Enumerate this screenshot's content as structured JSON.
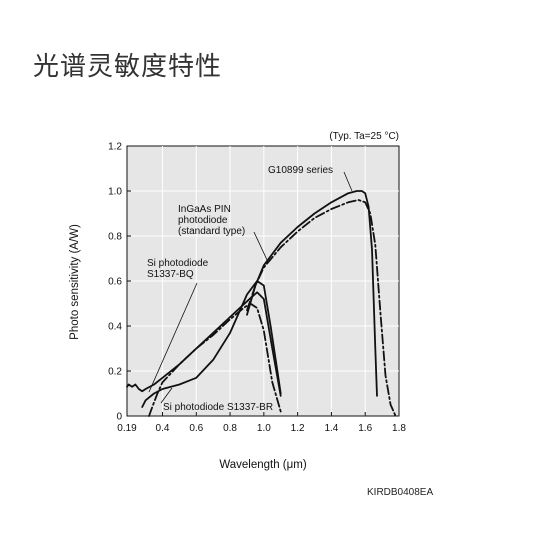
{
  "page": {
    "title": "光谱灵敏度特性",
    "figure_code": "KIRDB0408EA"
  },
  "chart_data": {
    "type": "line",
    "title": "",
    "condition_note": "(Typ. Ta=25 °C)",
    "xlabel": "Wavelength (μm)",
    "ylabel": "Photo sensitivity (A/W)",
    "xlim": [
      0.19,
      1.8
    ],
    "ylim": [
      0,
      1.2
    ],
    "x_ticks": [
      0.19,
      0.4,
      0.6,
      0.8,
      1.0,
      1.2,
      1.4,
      1.6,
      1.8
    ],
    "x_tick_labels": [
      "0.19",
      "0.4",
      "0.6",
      "0.8",
      "1.0",
      "1.2",
      "1.4",
      "1.6",
      "1.8"
    ],
    "y_ticks": [
      0,
      0.2,
      0.4,
      0.6,
      0.8,
      1.0,
      1.2
    ],
    "y_tick_labels": [
      "0",
      "0.2",
      "0.4",
      "0.6",
      "0.8",
      "1.0",
      "1.2"
    ],
    "grid": true,
    "background_color": "#e6e6e6",
    "series": [
      {
        "name": "G10899 series",
        "style": "solid",
        "x": [
          0.9,
          0.95,
          1.0,
          1.1,
          1.2,
          1.3,
          1.4,
          1.5,
          1.55,
          1.58,
          1.6,
          1.62,
          1.64,
          1.66,
          1.67
        ],
        "y": [
          0.45,
          0.58,
          0.67,
          0.77,
          0.84,
          0.9,
          0.95,
          0.99,
          1.0,
          1.0,
          0.99,
          0.93,
          0.74,
          0.3,
          0.09
        ]
      },
      {
        "name": "InGaAs PIN photodiode (standard type)",
        "style": "dashdot",
        "x": [
          0.9,
          0.95,
          1.0,
          1.1,
          1.2,
          1.3,
          1.4,
          1.5,
          1.56,
          1.6,
          1.63,
          1.66,
          1.69,
          1.72,
          1.75,
          1.78
        ],
        "y": [
          0.47,
          0.58,
          0.66,
          0.75,
          0.82,
          0.88,
          0.92,
          0.95,
          0.96,
          0.95,
          0.9,
          0.76,
          0.46,
          0.18,
          0.05,
          0.0
        ]
      },
      {
        "name": "Si photodiode S1337-BQ",
        "style": "solid",
        "x": [
          0.19,
          0.2,
          0.22,
          0.24,
          0.26,
          0.28,
          0.3,
          0.35,
          0.4,
          0.5,
          0.6,
          0.7,
          0.8,
          0.9,
          0.96,
          1.0,
          1.05,
          1.1
        ],
        "y": [
          0.13,
          0.14,
          0.13,
          0.14,
          0.12,
          0.11,
          0.12,
          0.14,
          0.17,
          0.23,
          0.3,
          0.37,
          0.44,
          0.51,
          0.55,
          0.52,
          0.3,
          0.09
        ]
      },
      {
        "name": "Si photodiode S1337-BR",
        "style": "dashdot",
        "x": [
          0.32,
          0.34,
          0.37,
          0.4,
          0.5,
          0.6,
          0.7,
          0.8,
          0.88,
          0.92,
          0.96,
          1.0,
          1.05,
          1.1
        ],
        "y": [
          0.0,
          0.04,
          0.1,
          0.15,
          0.23,
          0.3,
          0.36,
          0.43,
          0.48,
          0.5,
          0.48,
          0.38,
          0.15,
          0.02
        ]
      },
      {
        "name": "",
        "style": "solid",
        "x": [
          0.28,
          0.3,
          0.35,
          0.4,
          0.5,
          0.6,
          0.7,
          0.8,
          0.9,
          0.96,
          1.0,
          1.04,
          1.08,
          1.1
        ],
        "y": [
          0.04,
          0.07,
          0.1,
          0.12,
          0.14,
          0.17,
          0.25,
          0.37,
          0.54,
          0.6,
          0.58,
          0.4,
          0.2,
          0.1
        ]
      }
    ],
    "annotations": [
      {
        "text": "G10899 series",
        "series": 0
      },
      {
        "lines": [
          "InGaAs PIN",
          "photodiode",
          "(standard type)"
        ],
        "series": 1
      },
      {
        "lines": [
          "Si photodiode",
          "S1337-BQ"
        ],
        "series": 2
      },
      {
        "text": "Si photodiode S1337-BR",
        "series": 3
      }
    ]
  }
}
